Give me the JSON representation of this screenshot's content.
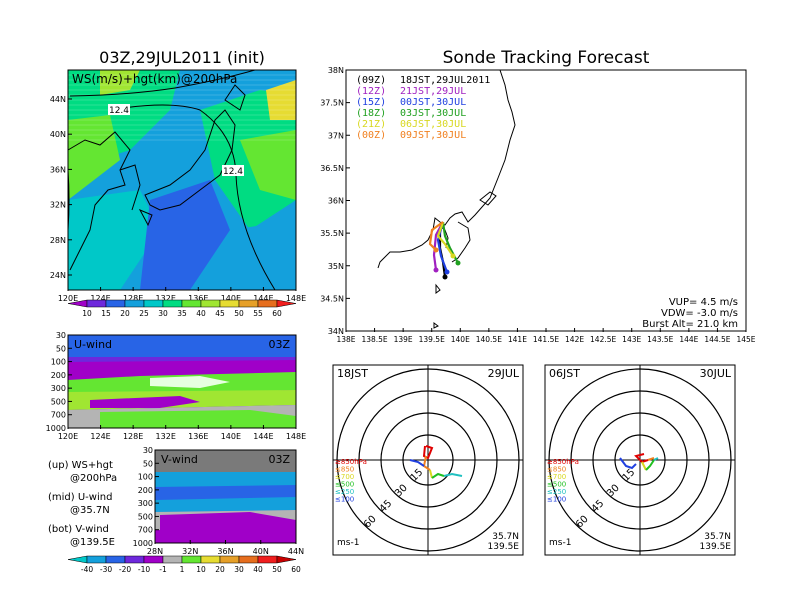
{
  "left": {
    "init_title": "03Z,29JUL2011 (init)",
    "top_panel": {
      "label": "WS(m/s)+hgt(km)@200hPa",
      "y_ticks": [
        "44N",
        "40N",
        "36N",
        "32N",
        "28N",
        "24N"
      ],
      "x_ticks": [
        "120E",
        "124E",
        "128E",
        "132E",
        "136E",
        "140E",
        "144E",
        "148E"
      ],
      "contour_labels": [
        "12.4",
        "12.4"
      ]
    },
    "ws_colorbar": {
      "labels": [
        "10",
        "15",
        "20",
        "25",
        "30",
        "35",
        "40",
        "45",
        "50",
        "55",
        "60"
      ]
    },
    "u_panel": {
      "label": "U-wind",
      "time": "03Z",
      "y_ticks": [
        "30",
        "50",
        "100",
        "200",
        "300",
        "500",
        "700",
        "1000"
      ],
      "x_ticks": [
        "120E",
        "124E",
        "128E",
        "132E",
        "136E",
        "140E",
        "144E",
        "148E"
      ]
    },
    "v_panel": {
      "label": "V-wind",
      "time": "03Z",
      "y_ticks": [
        "30",
        "50",
        "100",
        "200",
        "300",
        "500",
        "700",
        "1000"
      ],
      "x_ticks": [
        "28N",
        "32N",
        "36N",
        "40N",
        "44N"
      ]
    },
    "legend_text": [
      {
        "a": "(up) WS+hgt",
        "b": "@200hPa"
      },
      {
        "a": "(mid) U-wind",
        "b": "@35.7N"
      },
      {
        "a": "(bot) V-wind",
        "b": "@139.5E"
      }
    ],
    "uv_colorbar": {
      "labels": [
        "-40",
        "-30",
        "-20",
        "-10",
        "-1",
        "1",
        "10",
        "20",
        "30",
        "40",
        "50",
        "60"
      ]
    }
  },
  "right": {
    "title": "Sonde Tracking Forecast",
    "map": {
      "y_ticks": [
        "38N",
        "37.5N",
        "37N",
        "36.5N",
        "36N",
        "35.5N",
        "35N",
        "34.5N",
        "34N"
      ],
      "x_ticks": [
        "138E",
        "138.5E",
        "139E",
        "139.5E",
        "140E",
        "140.5E",
        "141E",
        "141.5E",
        "142E",
        "142.5E",
        "143E",
        "143.5E",
        "144E",
        "144.5E",
        "145E"
      ],
      "tracks_legend": [
        {
          "z": "(09Z)",
          "jst": "18JST,29JUL2011",
          "color": "#000000"
        },
        {
          "z": "(12Z)",
          "jst": "21JST,29JUL",
          "color": "#a020c0"
        },
        {
          "z": "(15Z)",
          "jst": "00JST,30JUL",
          "color": "#2040e0"
        },
        {
          "z": "(18Z)",
          "jst": "03JST,30JUL",
          "color": "#20a020"
        },
        {
          "z": "(21Z)",
          "jst": "06JST,30JUL",
          "color": "#d8d820"
        },
        {
          "z": "(00Z)",
          "jst": "09JST,30JUL",
          "color": "#f08020"
        }
      ],
      "params": [
        "VUP= 4.5 m/s",
        "VDW= -3.0 m/s",
        "Burst Alt= 21.0 km"
      ]
    },
    "hodographs": [
      {
        "time_left": "18JST",
        "time_right": "29JUL",
        "lat": "35.7N",
        "lon": "139.5E",
        "unit": "ms-1",
        "ring_labels": [
          "15",
          "30",
          "45",
          "60"
        ]
      },
      {
        "time_left": "06JST",
        "time_right": "30JUL",
        "lat": "35.7N",
        "lon": "139.5E",
        "unit": "ms-1",
        "ring_labels": [
          "15",
          "30",
          "45",
          "60"
        ]
      }
    ],
    "hodo_legend": [
      {
        "label": "≥850hPa",
        "color": "#e00000"
      },
      {
        "label": "≤850",
        "color": "#f08020"
      },
      {
        "label": "≤700",
        "color": "#d8d820"
      },
      {
        "label": "≤500",
        "color": "#20c020"
      },
      {
        "label": "≤250",
        "color": "#20c0c0"
      },
      {
        "label": "≤100",
        "color": "#2040e0"
      }
    ]
  },
  "colors": {
    "ws_scale": [
      "#a000c8",
      "#6e28dc",
      "#2864e6",
      "#14a0dc",
      "#00c8c8",
      "#00dc82",
      "#64e632",
      "#a0e632",
      "#e6dc32",
      "#e6a028",
      "#e66e1e",
      "#f01e1e"
    ],
    "uv_scale": [
      "#00c8c8",
      "#14a0dc",
      "#2864e6",
      "#6e28dc",
      "#a000c8",
      "#b4b4b4",
      "#64e632",
      "#e6dc32",
      "#e6a028",
      "#e66e1e",
      "#f01e1e",
      "#c80000"
    ]
  }
}
